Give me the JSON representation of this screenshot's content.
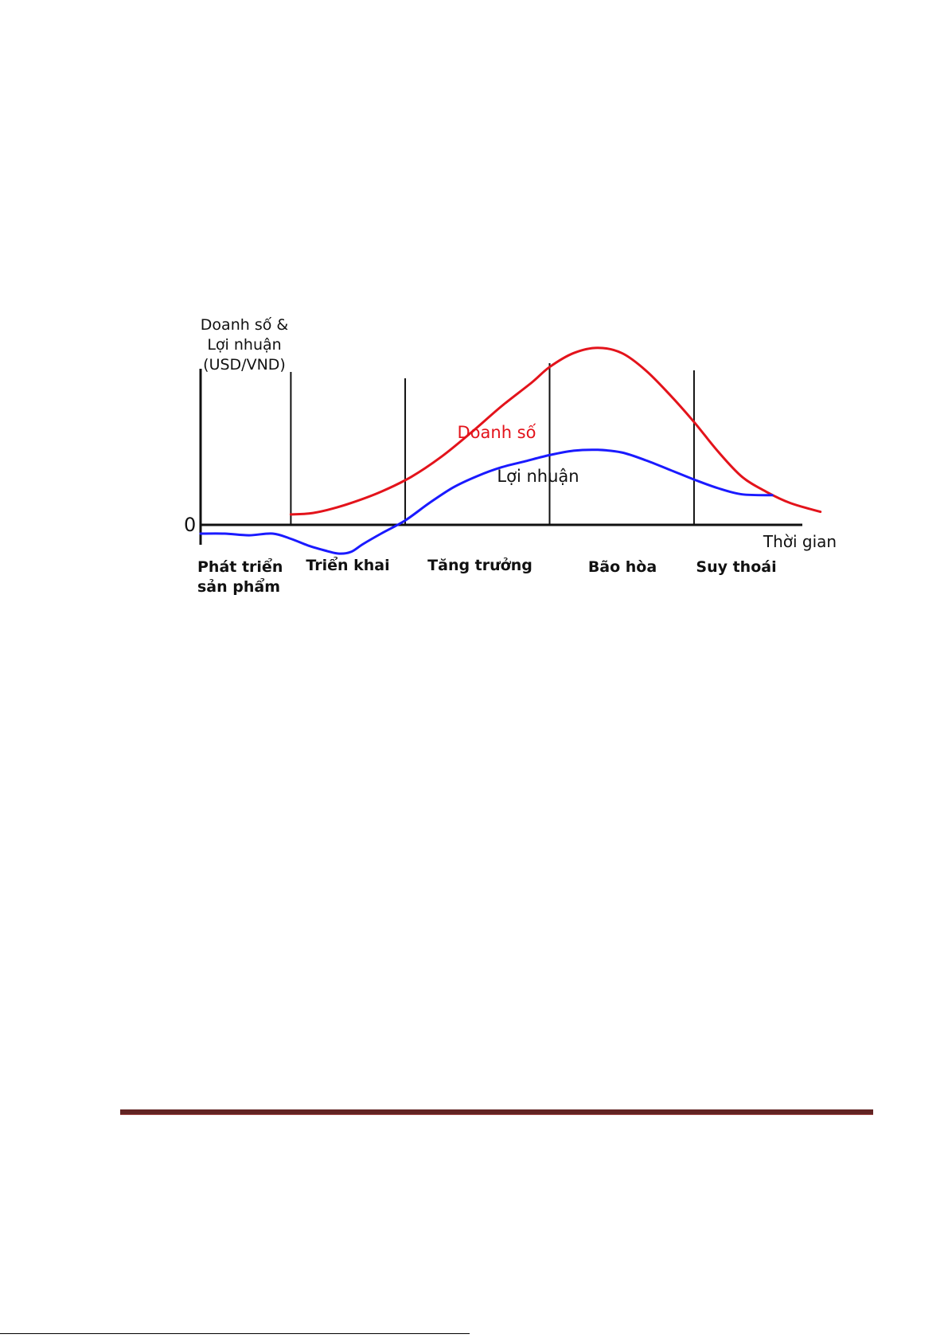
{
  "chart_data": {
    "type": "line",
    "ylabel_lines": [
      "Doanh số &",
      "Lợi nhuận",
      "(USD/VND)"
    ],
    "xlabel": "Thời gian",
    "zero_label": "0",
    "phases": [
      {
        "label_lines": [
          "Phát triển",
          "sản phẩm"
        ]
      },
      {
        "label_lines": [
          "Triển khai"
        ]
      },
      {
        "label_lines": [
          "Tăng trưởng"
        ]
      },
      {
        "label_lines": [
          "Bão hòa"
        ]
      },
      {
        "label_lines": [
          "Suy thoái"
        ]
      }
    ],
    "x_range": [
      0,
      100
    ],
    "y_range": [
      -40,
      250
    ],
    "phase_boundaries": [
      15,
      34,
      58,
      82
    ],
    "series": [
      {
        "name": "Doanh số",
        "color": "#e3131b",
        "x": [
          15,
          18,
          21,
          25,
          30,
          35,
          40,
          45,
          50,
          55,
          58,
          62,
          66,
          70,
          74,
          78,
          82,
          86,
          90,
          94,
          98,
          103
        ],
        "y": [
          12,
          13,
          17,
          25,
          38,
          55,
          78,
          106,
          136,
          163,
          181,
          197,
          203,
          197,
          177,
          149,
          118,
          84,
          55,
          38,
          25,
          15
        ]
      },
      {
        "name": "Lợi nhuận",
        "color": "#1a1aff",
        "x": [
          0,
          4,
          8,
          12,
          15,
          18,
          21,
          23,
          25,
          27,
          30,
          34,
          38,
          42,
          46,
          50,
          54,
          58,
          62,
          66,
          70,
          74,
          78,
          82,
          86,
          90,
          95
        ],
        "y": [
          -10,
          -10,
          -12,
          -10,
          -16,
          -24,
          -30,
          -33,
          -31,
          -22,
          -10,
          5,
          25,
          43,
          56,
          66,
          73,
          80,
          85,
          86,
          83,
          74,
          63,
          52,
          42,
          35,
          34
        ]
      }
    ]
  }
}
